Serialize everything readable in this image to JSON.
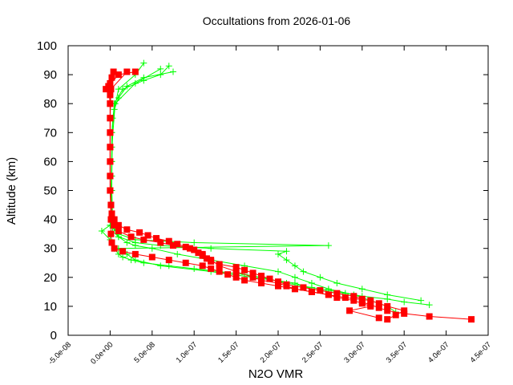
{
  "chart_data": {
    "type": "line",
    "title": "Occultations from 2026-01-06",
    "xlabel": "N2O VMR",
    "ylabel": "Altitude (km)",
    "xlim": [
      -5e-08,
      4.5e-07
    ],
    "ylim": [
      0,
      100
    ],
    "x_ticks": [
      "-5.0e-08",
      "0.0e+00",
      "5.0e-08",
      "1.0e-07",
      "1.5e-07",
      "2.0e-07",
      "2.5e-07",
      "3.0e-07",
      "3.5e-07",
      "4.0e-07",
      "4.5e-07"
    ],
    "x_tick_values": [
      -5e-08,
      0,
      5e-08,
      1e-07,
      1.5e-07,
      2e-07,
      2.5e-07,
      3e-07,
      3.5e-07,
      4e-07,
      4.5e-07
    ],
    "y_ticks": [
      "0",
      "10",
      "20",
      "30",
      "40",
      "50",
      "60",
      "70",
      "80",
      "90",
      "100"
    ],
    "y_tick_values": [
      0,
      10,
      20,
      30,
      40,
      50,
      60,
      70,
      80,
      90,
      100
    ],
    "grid": false,
    "colors": {
      "red_series": "#ff0000",
      "green_series": "#00ff00"
    },
    "green_profiles": [
      [
        [
          3.8e-07,
          10.5
        ],
        [
          3.5e-07,
          11.5
        ],
        [
          3.3e-07,
          12.5
        ],
        [
          3e-07,
          13.5
        ],
        [
          2.8e-07,
          14.5
        ],
        [
          2.6e-07,
          15.5
        ],
        [
          2.4e-07,
          16.5
        ],
        [
          2.1e-07,
          18
        ],
        [
          1.8e-07,
          20
        ],
        [
          1.6e-07,
          21
        ],
        [
          1.3e-07,
          22
        ],
        [
          1e-07,
          23
        ],
        [
          7e-08,
          24
        ],
        [
          4e-08,
          25
        ],
        [
          2.5e-08,
          26
        ],
        [
          1.5e-08,
          27
        ],
        [
          1e-08,
          28
        ],
        [
          5e-09,
          30
        ],
        [
          0,
          33
        ],
        [
          -1e-08,
          36
        ],
        [
          0,
          38
        ],
        [
          2e-09,
          40
        ],
        [
          2e-09,
          50
        ],
        [
          2e-09,
          60
        ],
        [
          2e-09,
          70
        ],
        [
          5e-09,
          78
        ],
        [
          1e-08,
          82
        ],
        [
          2e-08,
          86
        ],
        [
          4e-08,
          89
        ],
        [
          7.5e-08,
          91
        ]
      ],
      [
        [
          3.4e-07,
          8
        ],
        [
          3.3e-07,
          10
        ],
        [
          3.1e-07,
          12
        ],
        [
          2.9e-07,
          14
        ],
        [
          2.6e-07,
          16
        ],
        [
          2.4e-07,
          18
        ],
        [
          2.2e-07,
          20
        ],
        [
          2e-07,
          22
        ],
        [
          1.6e-07,
          24
        ],
        [
          1.2e-07,
          26
        ],
        [
          8e-08,
          28
        ],
        [
          5e-08,
          30
        ],
        [
          3e-08,
          31
        ],
        [
          2e-08,
          32
        ],
        [
          1e-08,
          34
        ],
        [
          5e-09,
          37
        ],
        [
          3e-09,
          40
        ],
        [
          2e-09,
          50
        ],
        [
          2e-09,
          60
        ],
        [
          2e-09,
          70
        ],
        [
          5e-09,
          80
        ],
        [
          1.5e-08,
          85
        ],
        [
          4e-08,
          88
        ],
        [
          6e-08,
          90
        ],
        [
          7e-08,
          93
        ]
      ],
      [
        [
          3.7e-07,
          12
        ],
        [
          3.3e-07,
          14
        ],
        [
          3e-07,
          16
        ],
        [
          2.7e-07,
          18
        ],
        [
          2.5e-07,
          20
        ],
        [
          2.3e-07,
          22
        ],
        [
          2.2e-07,
          24
        ],
        [
          2.1e-07,
          26
        ],
        [
          2e-07,
          28
        ],
        [
          2.1e-07,
          29
        ],
        [
          1.2e-07,
          30
        ],
        [
          6e-08,
          31
        ],
        [
          3e-08,
          32
        ],
        [
          1e-08,
          34
        ],
        [
          3e-09,
          36
        ],
        [
          2e-09,
          40
        ],
        [
          2e-09,
          55
        ],
        [
          3e-09,
          75
        ],
        [
          1e-08,
          85
        ],
        [
          3e-08,
          90
        ],
        [
          4e-08,
          94
        ]
      ],
      [
        [
          2.8e-07,
          14
        ],
        [
          2.4e-07,
          16
        ],
        [
          2.2e-07,
          18
        ],
        [
          1.7e-07,
          20
        ],
        [
          1.2e-07,
          22
        ],
        [
          6e-08,
          24
        ],
        [
          3e-08,
          26
        ],
        [
          2e-08,
          28
        ],
        [
          1e-08,
          30
        ],
        [
          2.6e-07,
          31
        ],
        [
          1e-07,
          32
        ],
        [
          3e-08,
          33
        ],
        [
          1e-08,
          35
        ],
        [
          0,
          38
        ],
        [
          1e-09,
          45
        ],
        [
          2e-09,
          65
        ],
        [
          6e-09,
          80
        ],
        [
          3e-08,
          87
        ],
        [
          6e-08,
          92
        ]
      ]
    ],
    "red_profiles": [
      [
        [
          4.3e-07,
          5.5
        ],
        [
          3.8e-07,
          6.5
        ],
        [
          3.5e-07,
          7.5
        ],
        [
          3.3e-07,
          8.5
        ],
        [
          3.2e-07,
          9.5
        ],
        [
          3.1e-07,
          10.5
        ],
        [
          3e-07,
          11.5
        ],
        [
          3e-07,
          12.5
        ],
        [
          2.9e-07,
          13.5
        ],
        [
          2.7e-07,
          14.5
        ],
        [
          2.5e-07,
          15.5
        ],
        [
          2.3e-07,
          16.5
        ],
        [
          2.1e-07,
          17.5
        ],
        [
          2e-07,
          18.5
        ],
        [
          1.9e-07,
          19.5
        ],
        [
          1.8e-07,
          20.5
        ],
        [
          1.7e-07,
          21.5
        ],
        [
          1.6e-07,
          22.5
        ],
        [
          1.5e-07,
          23.5
        ],
        [
          1.3e-07,
          24.5
        ],
        [
          1.2e-07,
          25.5
        ],
        [
          1.15e-07,
          26.5
        ],
        [
          1.1e-07,
          27.5
        ],
        [
          1.05e-07,
          28.5
        ],
        [
          1e-07,
          29.5
        ],
        [
          9e-08,
          30.5
        ],
        [
          8e-08,
          31.5
        ],
        [
          7e-08,
          32.5
        ],
        [
          5.5e-08,
          33.5
        ],
        [
          4.5e-08,
          34.5
        ],
        [
          3.5e-08,
          35.5
        ],
        [
          2e-08,
          36.5
        ],
        [
          1e-08,
          38
        ],
        [
          5e-09,
          40
        ],
        [
          2e-09,
          42
        ],
        [
          1e-09,
          45
        ],
        [
          0,
          50
        ],
        [
          0,
          55
        ],
        [
          0,
          60
        ],
        [
          0,
          65
        ],
        [
          0,
          70
        ],
        [
          0,
          75
        ],
        [
          0,
          80
        ],
        [
          0,
          83
        ],
        [
          -5e-09,
          85
        ],
        [
          0,
          87
        ],
        [
          2e-09,
          89
        ],
        [
          4e-09,
          91
        ]
      ],
      [
        [
          3.3e-07,
          5.5
        ],
        [
          3.4e-07,
          7
        ],
        [
          3.5e-07,
          8.5
        ],
        [
          3.3e-07,
          10
        ],
        [
          3.2e-07,
          11
        ],
        [
          3.1e-07,
          12
        ],
        [
          2.8e-07,
          13
        ],
        [
          2.6e-07,
          14
        ],
        [
          2.4e-07,
          15
        ],
        [
          2.2e-07,
          16
        ],
        [
          2e-07,
          17
        ],
        [
          1.8e-07,
          18
        ],
        [
          1.6e-07,
          19
        ],
        [
          1.5e-07,
          20
        ],
        [
          1.4e-07,
          21
        ],
        [
          1.3e-07,
          22
        ],
        [
          1.2e-07,
          23
        ],
        [
          1.1e-07,
          24
        ],
        [
          9e-08,
          25
        ],
        [
          7e-08,
          26
        ],
        [
          5e-08,
          27
        ],
        [
          3e-08,
          28
        ],
        [
          1.5e-08,
          29
        ],
        [
          5e-09,
          30
        ],
        [
          2e-09,
          32
        ],
        [
          1e-09,
          35
        ],
        [
          1e-09,
          40
        ],
        [
          0,
          50
        ],
        [
          0,
          60
        ],
        [
          0,
          70
        ],
        [
          0,
          80
        ],
        [
          -2e-09,
          86
        ],
        [
          1e-08,
          90
        ],
        [
          3e-08,
          91
        ]
      ],
      [
        [
          3.2e-07,
          6
        ],
        [
          2.85e-07,
          8.5
        ],
        [
          3.1e-07,
          10
        ],
        [
          3e-07,
          11
        ],
        [
          2.9e-07,
          12
        ],
        [
          2.7e-07,
          13
        ],
        [
          2.6e-07,
          14
        ],
        [
          2.4e-07,
          15
        ],
        [
          2.2e-07,
          16
        ],
        [
          2.1e-07,
          17
        ],
        [
          2e-07,
          18
        ],
        [
          1.8e-07,
          19
        ],
        [
          1.7e-07,
          20
        ],
        [
          1.5e-07,
          22
        ],
        [
          1.3e-07,
          24
        ],
        [
          1.2e-07,
          26
        ],
        [
          1.1e-07,
          28
        ],
        [
          9.5e-08,
          30
        ],
        [
          7.5e-08,
          31
        ],
        [
          6e-08,
          32
        ],
        [
          4e-08,
          33
        ],
        [
          2.5e-08,
          34
        ],
        [
          1e-08,
          36
        ],
        [
          5e-09,
          38
        ],
        [
          2e-09,
          40
        ],
        [
          1e-09,
          45
        ],
        [
          0,
          55
        ],
        [
          0,
          65
        ],
        [
          0,
          75
        ],
        [
          1e-09,
          85
        ],
        [
          2e-08,
          91
        ]
      ]
    ]
  }
}
